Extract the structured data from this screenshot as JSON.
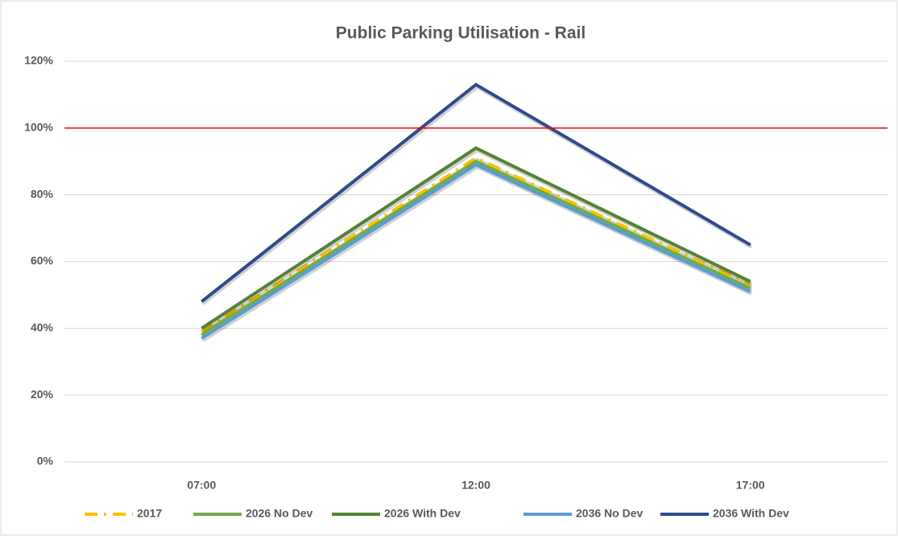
{
  "chart_data": {
    "type": "line",
    "title": "Public Parking Utilisation - Rail",
    "categories": [
      "07:00",
      "12:00",
      "17:00"
    ],
    "series": [
      {
        "name": "2017",
        "color": "#ffc000",
        "dash": "dash-dot",
        "values": [
          39,
          91,
          53
        ]
      },
      {
        "name": "2026 No Dev",
        "color": "#70ad47",
        "values": [
          38,
          90,
          52
        ]
      },
      {
        "name": "2026 With Dev",
        "color": "#548235",
        "values": [
          40,
          94,
          54
        ]
      },
      {
        "name": "2036 No Dev",
        "color": "#5b9bd5",
        "values": [
          37,
          89,
          51
        ]
      },
      {
        "name": "2036 With Dev",
        "color": "#2f4b8c",
        "values": [
          48,
          113,
          65
        ]
      }
    ],
    "reference_line": {
      "value": 100,
      "color": "#ff0000"
    },
    "ylim": [
      0,
      120
    ],
    "yticks": [
      {
        "value": 0,
        "label": "0%"
      },
      {
        "value": 20,
        "label": "20%"
      },
      {
        "value": 40,
        "label": "40%"
      },
      {
        "value": 60,
        "label": "60%"
      },
      {
        "value": 80,
        "label": "80%"
      },
      {
        "value": 100,
        "label": "100%"
      },
      {
        "value": 120,
        "label": "120%"
      }
    ],
    "grid": true,
    "legend": "bottom"
  }
}
